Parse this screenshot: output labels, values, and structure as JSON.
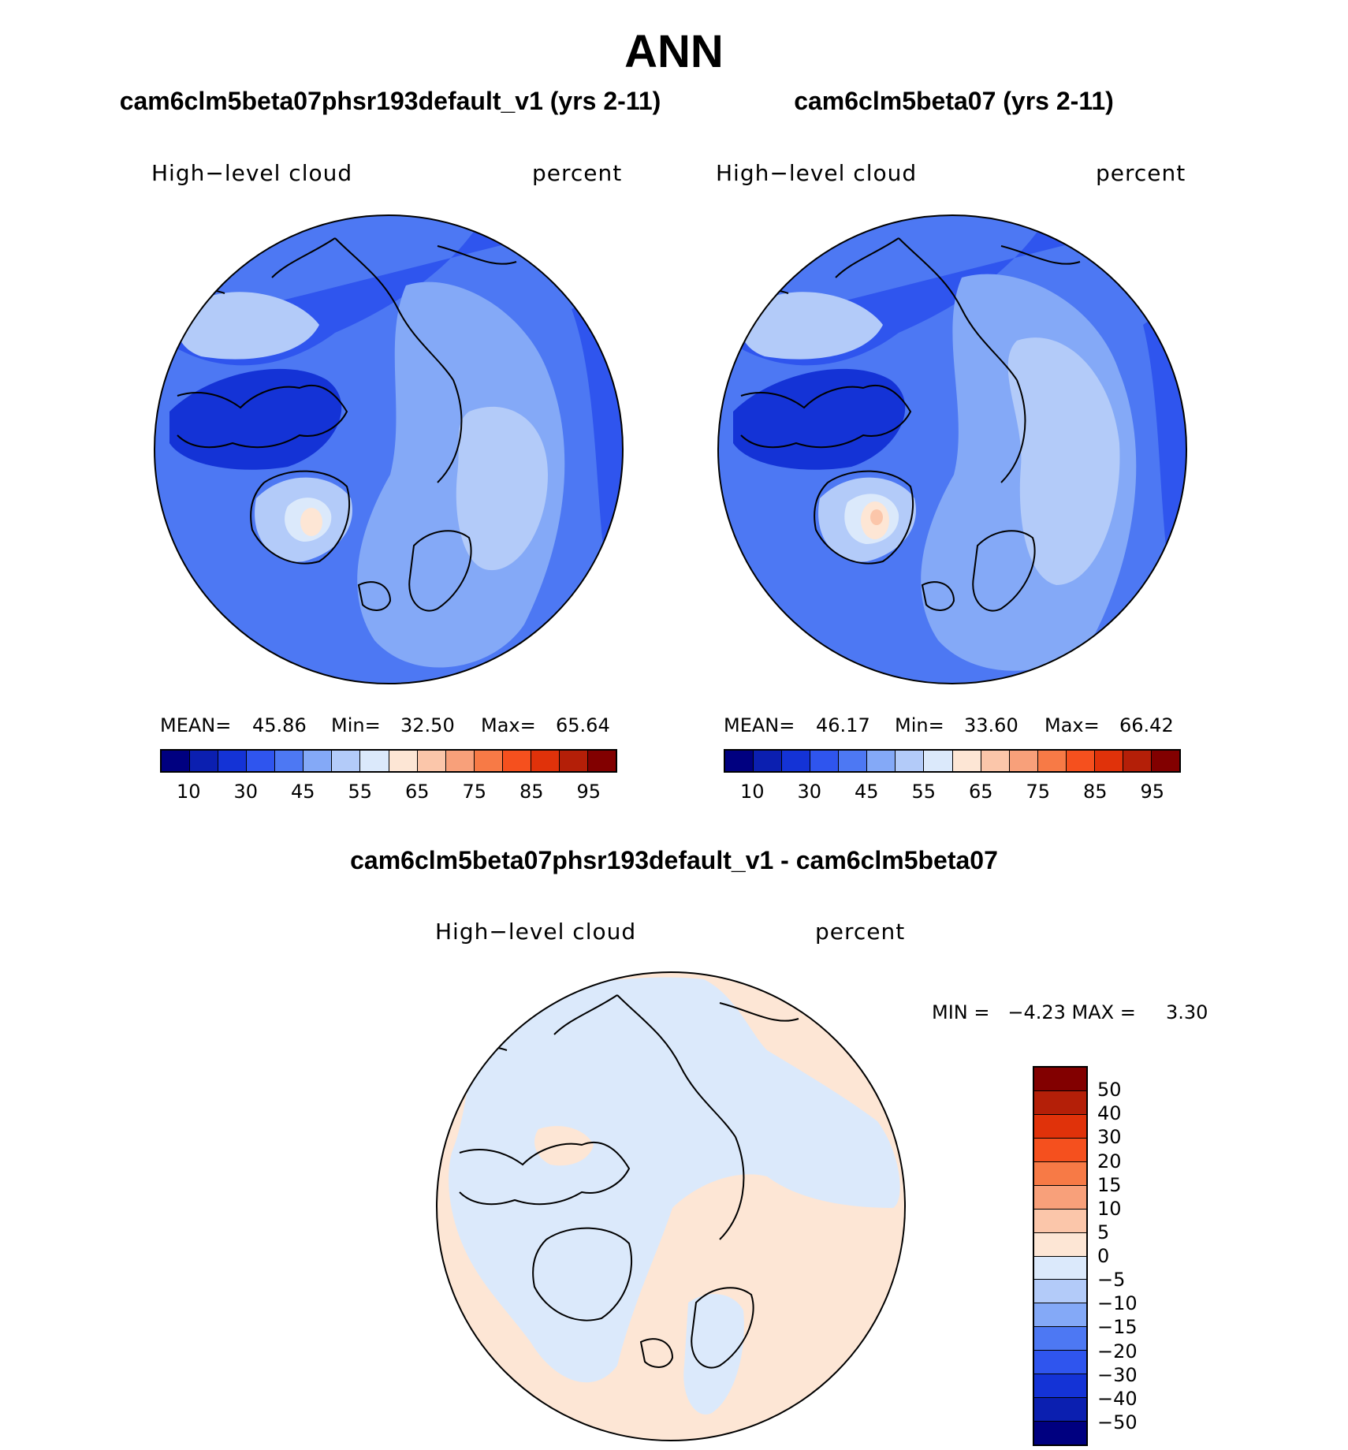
{
  "figure": {
    "title": "ANN",
    "diff_title": "cam6clm5beta07phsr193default_v1 - cam6clm5beta07"
  },
  "panels": [
    {
      "case_title": "cam6clm5beta07phsr193default_v1 (yrs 2-11)",
      "variable": "High−level cloud",
      "units": "percent",
      "mean_label": "MEAN=",
      "mean": "45.86",
      "min_label": "Min=",
      "min": "32.50",
      "max_label": "Max=",
      "max": "65.64"
    },
    {
      "case_title": "cam6clm5beta07 (yrs 2-11)",
      "variable": "High−level cloud",
      "units": "percent",
      "mean_label": "MEAN=",
      "mean": "46.17",
      "min_label": "Min=",
      "min": "33.60",
      "max_label": "Max=",
      "max": "66.42"
    }
  ],
  "diff_panel": {
    "variable": "High−level cloud",
    "units": "percent",
    "minmax_text": "MIN =   −4.23 MAX =     3.30"
  },
  "colorbar_abs": {
    "colors": [
      "#000080",
      "#0b1fb0",
      "#1433d6",
      "#2f55ee",
      "#4d78f3",
      "#84a9f7",
      "#b3cbf9",
      "#dbe9fb",
      "#fde6d5",
      "#fbc6aa",
      "#f8a07a",
      "#f77a46",
      "#f5501e",
      "#e0320a",
      "#b41f08",
      "#820000"
    ],
    "ticks": [
      "10",
      "30",
      "45",
      "55",
      "65",
      "75",
      "85",
      "95"
    ]
  },
  "colorbar_diff": {
    "colors": [
      "#820000",
      "#b41f08",
      "#e0320a",
      "#f5501e",
      "#f77a46",
      "#f8a07a",
      "#fbc6aa",
      "#fde6d5",
      "#dbe9fb",
      "#b3cbf9",
      "#84a9f7",
      "#4d78f3",
      "#2f55ee",
      "#1433d6",
      "#0b1fb0",
      "#000080"
    ],
    "ticks": [
      "50",
      "40",
      "30",
      "20",
      "15",
      "10",
      "5",
      "0",
      "−5",
      "−10",
      "−15",
      "−20",
      "−30",
      "−40",
      "−50"
    ]
  },
  "map_colors": {
    "c40": "#2f55ee",
    "c45": "#4d78f3",
    "c50": "#84a9f7",
    "c55": "#b3cbf9",
    "c60": "#dbe9fb",
    "c65": "#fde6d5",
    "c70": "#fbc6aa",
    "c35": "#1433d6",
    "neg": "#dbe9fb",
    "pos": "#fde6d5"
  }
}
